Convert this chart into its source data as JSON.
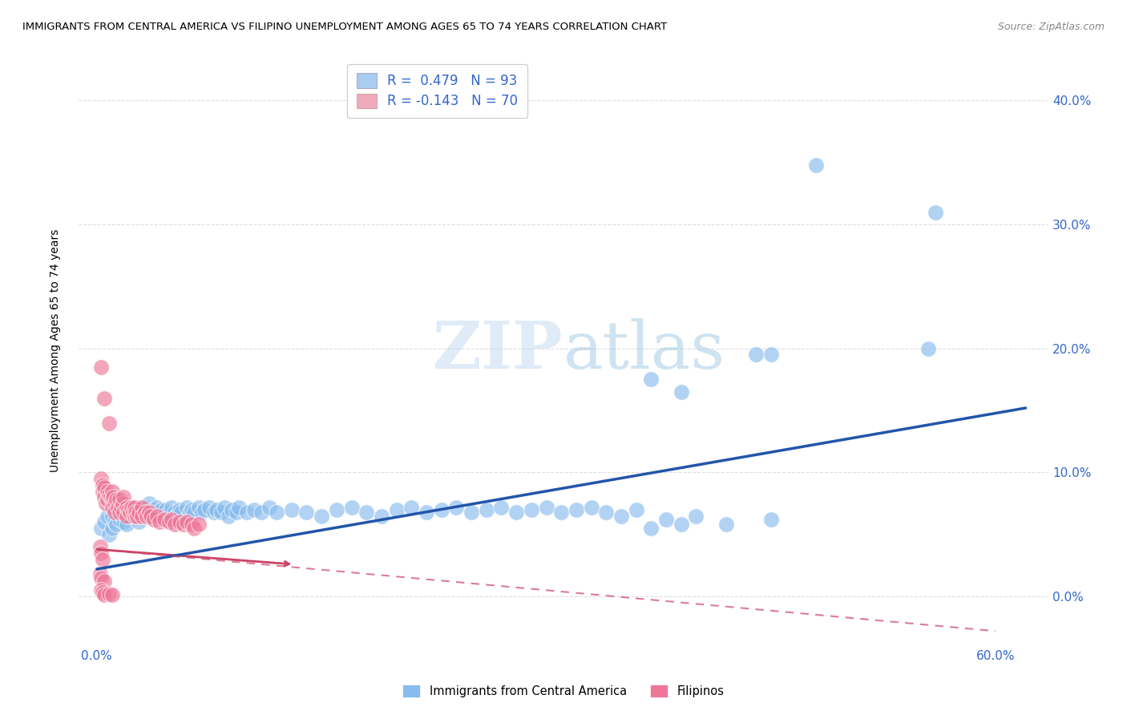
{
  "title": "IMMIGRANTS FROM CENTRAL AMERICA VS FILIPINO UNEMPLOYMENT AMONG AGES 65 TO 74 YEARS CORRELATION CHART",
  "source": "Source: ZipAtlas.com",
  "ylabel": "Unemployment Among Ages 65 to 74 years",
  "xlim": [
    -0.012,
    0.635
  ],
  "ylim": [
    -0.038,
    0.435
  ],
  "ytick_vals": [
    0.0,
    0.1,
    0.2,
    0.3,
    0.4
  ],
  "ytick_labels": [
    "0.0%",
    "10.0%",
    "20.0%",
    "30.0%",
    "40.0%"
  ],
  "xtick_vals": [
    0.0,
    0.1,
    0.2,
    0.3,
    0.4,
    0.5,
    0.6
  ],
  "xtick_labels": [
    "0.0%",
    "",
    "",
    "",
    "",
    "",
    "60.0%"
  ],
  "watermark": "ZIPatlas",
  "legend_R1": "0.479",
  "legend_N1": "93",
  "legend_R2": "-0.143",
  "legend_N2": "70",
  "legend_color1": "#aaccee",
  "legend_color2": "#f0aabb",
  "blue_scatter_color": "#88bbee",
  "pink_scatter_color": "#ee7799",
  "blue_line_color": "#2255aa",
  "pink_line_color": "#cc4466",
  "blue_line": [
    [
      0.0,
      0.022
    ],
    [
      0.62,
      0.152
    ]
  ],
  "pink_line": [
    [
      0.0,
      0.038
    ],
    [
      0.6,
      -0.028
    ]
  ],
  "background_color": "#ffffff",
  "grid_color": "#dddddd",
  "blue_points": [
    [
      0.003,
      0.055
    ],
    [
      0.005,
      0.06
    ],
    [
      0.007,
      0.065
    ],
    [
      0.008,
      0.05
    ],
    [
      0.01,
      0.055
    ],
    [
      0.01,
      0.065
    ],
    [
      0.012,
      0.06
    ],
    [
      0.013,
      0.058
    ],
    [
      0.015,
      0.062
    ],
    [
      0.015,
      0.07
    ],
    [
      0.017,
      0.065
    ],
    [
      0.018,
      0.06
    ],
    [
      0.02,
      0.068
    ],
    [
      0.02,
      0.058
    ],
    [
      0.022,
      0.065
    ],
    [
      0.023,
      0.072
    ],
    [
      0.025,
      0.07
    ],
    [
      0.025,
      0.065
    ],
    [
      0.027,
      0.068
    ],
    [
      0.028,
      0.06
    ],
    [
      0.03,
      0.07
    ],
    [
      0.03,
      0.065
    ],
    [
      0.032,
      0.072
    ],
    [
      0.033,
      0.068
    ],
    [
      0.035,
      0.065
    ],
    [
      0.035,
      0.075
    ],
    [
      0.037,
      0.07
    ],
    [
      0.038,
      0.068
    ],
    [
      0.04,
      0.072
    ],
    [
      0.04,
      0.065
    ],
    [
      0.042,
      0.068
    ],
    [
      0.043,
      0.07
    ],
    [
      0.045,
      0.065
    ],
    [
      0.046,
      0.07
    ],
    [
      0.048,
      0.068
    ],
    [
      0.05,
      0.072
    ],
    [
      0.052,
      0.068
    ],
    [
      0.053,
      0.065
    ],
    [
      0.055,
      0.07
    ],
    [
      0.056,
      0.068
    ],
    [
      0.06,
      0.072
    ],
    [
      0.062,
      0.068
    ],
    [
      0.063,
      0.07
    ],
    [
      0.065,
      0.068
    ],
    [
      0.068,
      0.072
    ],
    [
      0.07,
      0.068
    ],
    [
      0.072,
      0.07
    ],
    [
      0.075,
      0.072
    ],
    [
      0.078,
      0.068
    ],
    [
      0.08,
      0.07
    ],
    [
      0.083,
      0.068
    ],
    [
      0.085,
      0.072
    ],
    [
      0.088,
      0.065
    ],
    [
      0.09,
      0.07
    ],
    [
      0.093,
      0.068
    ],
    [
      0.095,
      0.072
    ],
    [
      0.1,
      0.068
    ],
    [
      0.105,
      0.07
    ],
    [
      0.11,
      0.068
    ],
    [
      0.115,
      0.072
    ],
    [
      0.12,
      0.068
    ],
    [
      0.13,
      0.07
    ],
    [
      0.14,
      0.068
    ],
    [
      0.15,
      0.065
    ],
    [
      0.16,
      0.07
    ],
    [
      0.17,
      0.072
    ],
    [
      0.18,
      0.068
    ],
    [
      0.19,
      0.065
    ],
    [
      0.2,
      0.07
    ],
    [
      0.21,
      0.072
    ],
    [
      0.22,
      0.068
    ],
    [
      0.23,
      0.07
    ],
    [
      0.24,
      0.072
    ],
    [
      0.25,
      0.068
    ],
    [
      0.26,
      0.07
    ],
    [
      0.27,
      0.072
    ],
    [
      0.28,
      0.068
    ],
    [
      0.29,
      0.07
    ],
    [
      0.3,
      0.072
    ],
    [
      0.31,
      0.068
    ],
    [
      0.32,
      0.07
    ],
    [
      0.33,
      0.072
    ],
    [
      0.34,
      0.068
    ],
    [
      0.35,
      0.065
    ],
    [
      0.36,
      0.07
    ],
    [
      0.37,
      0.055
    ],
    [
      0.38,
      0.062
    ],
    [
      0.39,
      0.058
    ],
    [
      0.4,
      0.065
    ],
    [
      0.42,
      0.058
    ],
    [
      0.45,
      0.062
    ],
    [
      0.37,
      0.175
    ],
    [
      0.39,
      0.165
    ],
    [
      0.45,
      0.195
    ],
    [
      0.555,
      0.2
    ],
    [
      0.44,
      0.195
    ],
    [
      0.56,
      0.31
    ],
    [
      0.48,
      0.348
    ]
  ],
  "pink_points": [
    [
      0.003,
      0.185
    ],
    [
      0.005,
      0.16
    ],
    [
      0.008,
      0.14
    ],
    [
      0.003,
      0.095
    ],
    [
      0.004,
      0.09
    ],
    [
      0.004,
      0.085
    ],
    [
      0.005,
      0.088
    ],
    [
      0.005,
      0.08
    ],
    [
      0.006,
      0.075
    ],
    [
      0.007,
      0.085
    ],
    [
      0.007,
      0.078
    ],
    [
      0.008,
      0.082
    ],
    [
      0.009,
      0.08
    ],
    [
      0.01,
      0.078
    ],
    [
      0.01,
      0.085
    ],
    [
      0.01,
      0.072
    ],
    [
      0.011,
      0.08
    ],
    [
      0.012,
      0.075
    ],
    [
      0.012,
      0.068
    ],
    [
      0.013,
      0.078
    ],
    [
      0.014,
      0.072
    ],
    [
      0.015,
      0.078
    ],
    [
      0.015,
      0.068
    ],
    [
      0.016,
      0.072
    ],
    [
      0.017,
      0.075
    ],
    [
      0.018,
      0.068
    ],
    [
      0.018,
      0.08
    ],
    [
      0.02,
      0.072
    ],
    [
      0.02,
      0.065
    ],
    [
      0.021,
      0.07
    ],
    [
      0.022,
      0.068
    ],
    [
      0.023,
      0.072
    ],
    [
      0.024,
      0.068
    ],
    [
      0.025,
      0.065
    ],
    [
      0.025,
      0.072
    ],
    [
      0.026,
      0.068
    ],
    [
      0.027,
      0.065
    ],
    [
      0.028,
      0.068
    ],
    [
      0.03,
      0.072
    ],
    [
      0.03,
      0.065
    ],
    [
      0.032,
      0.068
    ],
    [
      0.033,
      0.065
    ],
    [
      0.035,
      0.068
    ],
    [
      0.036,
      0.065
    ],
    [
      0.038,
      0.062
    ],
    [
      0.04,
      0.065
    ],
    [
      0.042,
      0.06
    ],
    [
      0.045,
      0.062
    ],
    [
      0.048,
      0.06
    ],
    [
      0.05,
      0.062
    ],
    [
      0.052,
      0.058
    ],
    [
      0.055,
      0.06
    ],
    [
      0.058,
      0.058
    ],
    [
      0.06,
      0.06
    ],
    [
      0.063,
      0.058
    ],
    [
      0.065,
      0.055
    ],
    [
      0.068,
      0.058
    ],
    [
      0.002,
      0.04
    ],
    [
      0.003,
      0.035
    ],
    [
      0.004,
      0.03
    ],
    [
      0.002,
      0.018
    ],
    [
      0.003,
      0.015
    ],
    [
      0.005,
      0.012
    ],
    [
      0.003,
      0.005
    ],
    [
      0.004,
      0.003
    ],
    [
      0.005,
      0.001
    ],
    [
      0.008,
      0.002
    ],
    [
      0.01,
      0.001
    ]
  ]
}
